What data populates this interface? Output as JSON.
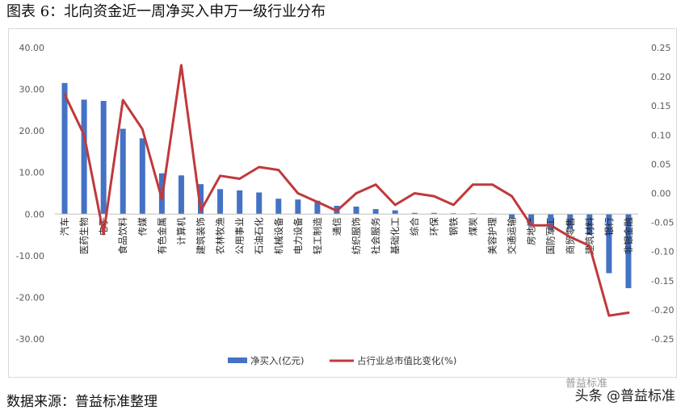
{
  "title": "图表 6：北向资金近一周净买入申万一级行业分布",
  "source_note": "数据来源：普益标准整理",
  "watermark": "头条 @普益标准",
  "watermark_logo": "普益标准",
  "colors": {
    "bar": "#4472c4",
    "line": "#c0393b",
    "axis_text": "#595959",
    "axis_line": "#bfbfbf"
  },
  "chart_data": {
    "type": "bar",
    "categories": [
      "汽车",
      "医药生物",
      "电子",
      "食品饮料",
      "传媒",
      "有色金属",
      "计算机",
      "建筑装饰",
      "农林牧渔",
      "公用事业",
      "石油石化",
      "机械设备",
      "电力设备",
      "轻工制造",
      "通信",
      "纺织服饰",
      "社会服务",
      "基础化工",
      "综合",
      "环保",
      "钢铁",
      "煤炭",
      "美容护理",
      "交通运输",
      "房地产",
      "国防军工",
      "商贸零售",
      "建筑材料",
      "银行",
      "非银金融"
    ],
    "series": [
      {
        "name": "净买入(亿元)",
        "type": "bar",
        "axis": "left",
        "values": [
          31.5,
          27.5,
          27.2,
          20.5,
          18.2,
          9.8,
          9.3,
          7.2,
          6.0,
          5.7,
          5.2,
          3.7,
          3.5,
          3.2,
          2.0,
          1.8,
          1.2,
          0.9,
          0.3,
          0.3,
          0.2,
          0.2,
          0.1,
          -1.0,
          -3.0,
          -3.8,
          -3.5,
          -5.0,
          -14.2,
          -17.8
        ]
      },
      {
        "name": "占行业总市值比变化(%)",
        "type": "line",
        "axis": "right",
        "values": [
          0.17,
          0.1,
          -0.07,
          0.16,
          0.11,
          -0.01,
          0.22,
          -0.03,
          0.03,
          0.025,
          0.045,
          0.04,
          0.0,
          -0.015,
          -0.03,
          0.0,
          0.015,
          -0.02,
          0.0,
          -0.005,
          -0.02,
          0.015,
          0.015,
          -0.005,
          -0.055,
          -0.055,
          -0.075,
          -0.09,
          -0.21,
          -0.205
        ]
      }
    ],
    "left_axis": {
      "min": -30,
      "max": 40,
      "step": 10,
      "ticks": [
        "40.00",
        "30.00",
        "20.00",
        "10.00",
        "0.00",
        "-10.00",
        "-20.00",
        "-30.00"
      ]
    },
    "right_axis": {
      "min": -0.25,
      "max": 0.25,
      "step": 0.05,
      "ticks": [
        "0.25",
        "0.20",
        "0.15",
        "0.10",
        "0.05",
        "0.00",
        "-0.05",
        "-0.10",
        "-0.15",
        "-0.20",
        "-0.25"
      ]
    },
    "legend_position": "bottom",
    "grid": false
  }
}
